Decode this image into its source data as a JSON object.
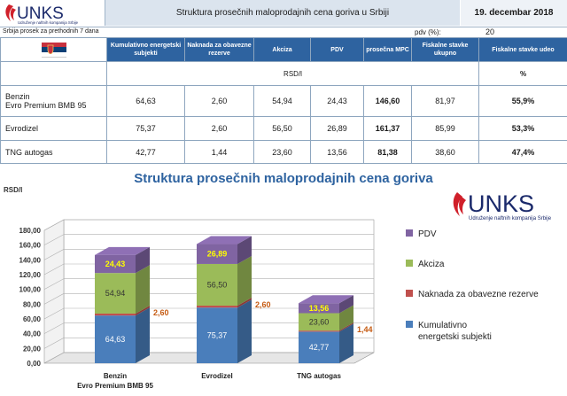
{
  "header": {
    "logo_text": "UNKS",
    "logo_subtext": "Udruženje naftnih kompanija Srbije",
    "title": "Struktura prosečnih maloprodajnih cena goriva u Srbiji",
    "date": "19. decembar 2018",
    "subtitle": "Srbija prosek za prethodnih 7 dana",
    "pdv_label": "pdv (%):",
    "pdv_value": "20"
  },
  "table": {
    "columns": [
      "Kumulativno energetski subjekti",
      "Naknada za obavezne rezerve",
      "Akciza",
      "PDV",
      "prosečna MPC",
      "Fiskalne stavke ukupno",
      "Fiskalne stavke udeo"
    ],
    "unit_rsd": "RSD/l",
    "unit_pct": "%",
    "rows": [
      {
        "name1": "Benzin",
        "name2": "Evro Premium BMB 95",
        "kum": "64,63",
        "nak": "2,60",
        "akc": "54,94",
        "pdv": "24,43",
        "mpc": "146,60",
        "fis": "81,97",
        "udeo": "55,9%"
      },
      {
        "name1": "Evrodizel",
        "name2": "",
        "kum": "75,37",
        "nak": "2,60",
        "akc": "56,50",
        "pdv": "26,89",
        "mpc": "161,37",
        "fis": "85,99",
        "udeo": "53,3%"
      },
      {
        "name1": "TNG autogas",
        "name2": "",
        "kum": "42,77",
        "nak": "1,44",
        "akc": "23,60",
        "pdv": "13,56",
        "mpc": "81,38",
        "fis": "38,60",
        "udeo": "47,4%"
      }
    ]
  },
  "flag_colors": [
    "#c8313e",
    "#0c4076",
    "#ffffff"
  ],
  "chart_data": {
    "type": "bar",
    "stacked": true,
    "title": "Struktura prosečnih maloprodajnih cena goriva",
    "ylabel": "RSD/l",
    "ylim": [
      0,
      180
    ],
    "yticks": [
      "0,00",
      "20,00",
      "40,00",
      "60,00",
      "80,00",
      "100,00",
      "120,00",
      "140,00",
      "160,00",
      "180,00"
    ],
    "categories": [
      "Benzin",
      "Evrodizel",
      "TNG autogas"
    ],
    "category_sublabels": [
      "Evro Premium BMB 95",
      "",
      ""
    ],
    "series": [
      {
        "name": "Kumulativno energetski subjekti",
        "values": [
          64.63,
          75.37,
          42.77
        ],
        "labels": [
          "64,63",
          "75,37",
          "42,77"
        ],
        "color": "#4a7ebb"
      },
      {
        "name": "Naknada za obavezne rezerve",
        "values": [
          2.6,
          2.6,
          1.44
        ],
        "labels": [
          "2,60",
          "2,60",
          "1,44"
        ],
        "color": "#c0504d"
      },
      {
        "name": "Akciza",
        "values": [
          54.94,
          56.5,
          23.6
        ],
        "labels": [
          "54,94",
          "56,50",
          "23,60"
        ],
        "color": "#9bbb59"
      },
      {
        "name": "PDV",
        "values": [
          24.43,
          26.89,
          13.56
        ],
        "labels": [
          "24,43",
          "26,89",
          "13,56"
        ],
        "color": "#8064a2"
      }
    ],
    "legend_position": "right",
    "legend": [
      "PDV",
      "Akciza",
      "Naknada za obavezne rezerve",
      "Kumulativno energetski subjekti"
    ]
  }
}
